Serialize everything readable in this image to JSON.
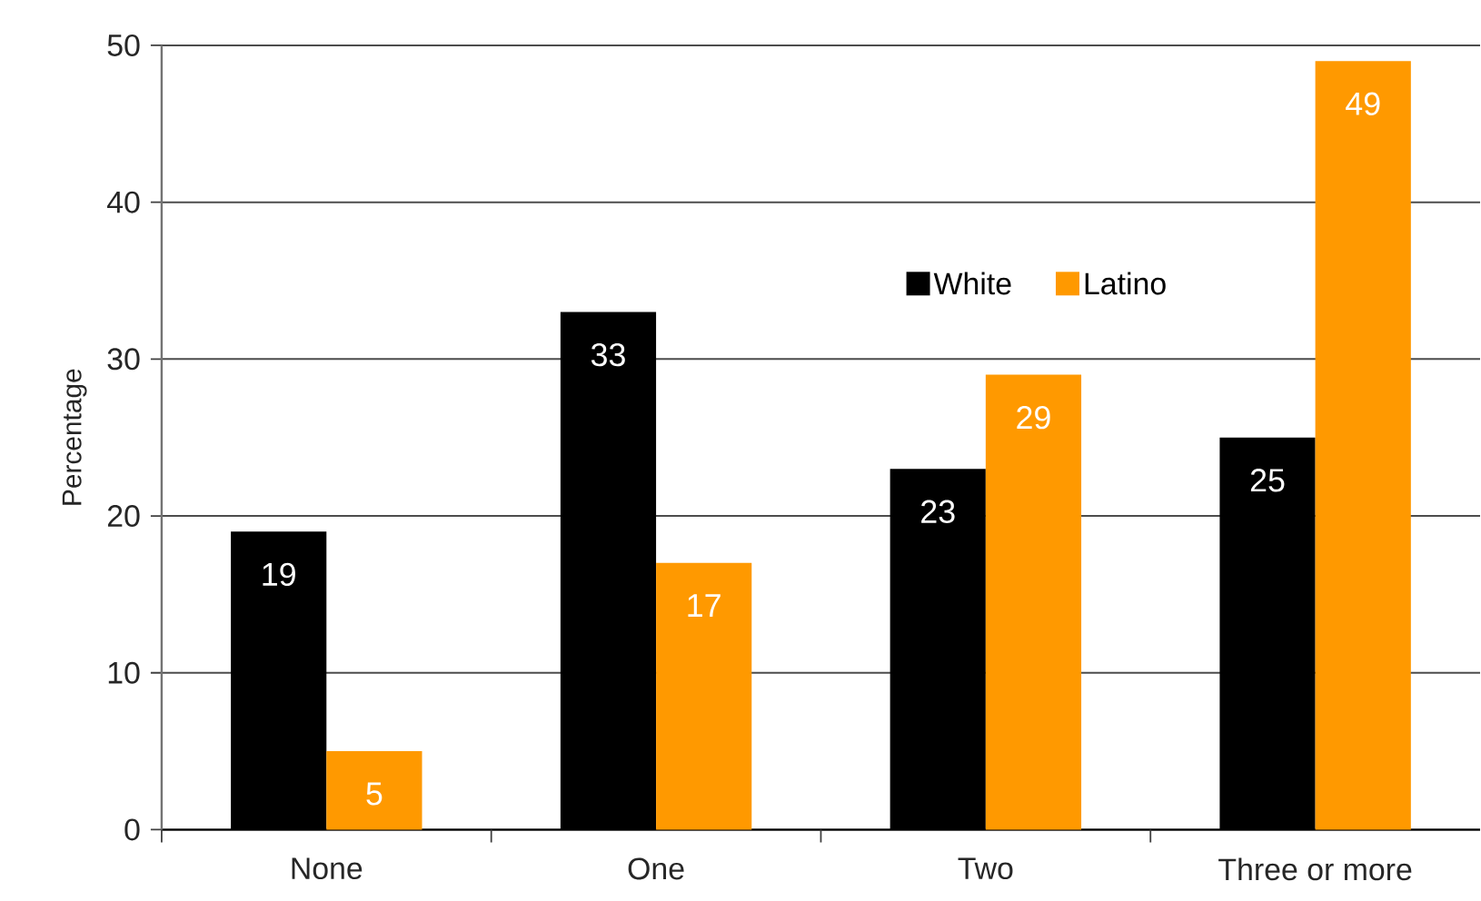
{
  "chart_data": {
    "type": "bar",
    "ylabel": "Percentage",
    "categories": [
      "None",
      "One",
      "Two",
      "Three or more"
    ],
    "series": [
      {
        "name": "White",
        "color": "#000000",
        "values": [
          19,
          33,
          23,
          25
        ]
      },
      {
        "name": "Latino",
        "color": "#ff9900",
        "values": [
          5,
          17,
          29,
          49
        ]
      }
    ],
    "ylim": [
      0,
      50
    ],
    "yticks": [
      0,
      10,
      20,
      30,
      40,
      50
    ],
    "grid": "y",
    "legend": "top",
    "data_labels": true
  }
}
